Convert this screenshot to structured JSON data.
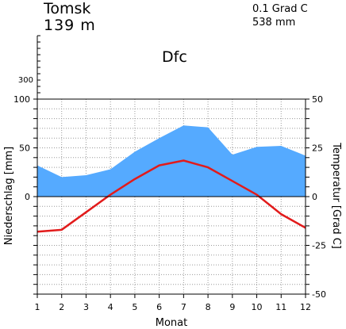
{
  "header": {
    "station": "Tomsk",
    "elevation": "139  m",
    "mean_temperature": "0.1 Grad C",
    "annual_precipitation": "538 mm",
    "koeppen_class": "Dfc"
  },
  "chart_data": {
    "type": "area",
    "x": [
      1,
      2,
      3,
      4,
      5,
      6,
      7,
      8,
      9,
      10,
      11,
      12
    ],
    "xlabel": "Monat",
    "xticks": [
      "1",
      "2",
      "3",
      "4",
      "5",
      "6",
      "7",
      "8",
      "9",
      "10",
      "11",
      "12"
    ],
    "precipitation": {
      "ylabel": "Niederschlag [mm]",
      "ylim": [
        -100,
        100
      ],
      "yticks": [
        "100",
        "50",
        "0"
      ],
      "upper_tick": "300",
      "values": [
        32,
        20,
        22,
        28,
        46,
        60,
        73,
        71,
        43,
        51,
        52,
        42
      ],
      "color": "#55aaff"
    },
    "temperature": {
      "ylabel": "Temperatur [Grad C]",
      "ylim": [
        -50,
        50
      ],
      "yticks": [
        "50",
        "25",
        "0",
        "-25",
        "-50"
      ],
      "values": [
        -18,
        -17,
        -8,
        1,
        9,
        16,
        18.5,
        15,
        8,
        1,
        -9,
        -16
      ],
      "color": "#e21b1b"
    },
    "grid": true
  }
}
